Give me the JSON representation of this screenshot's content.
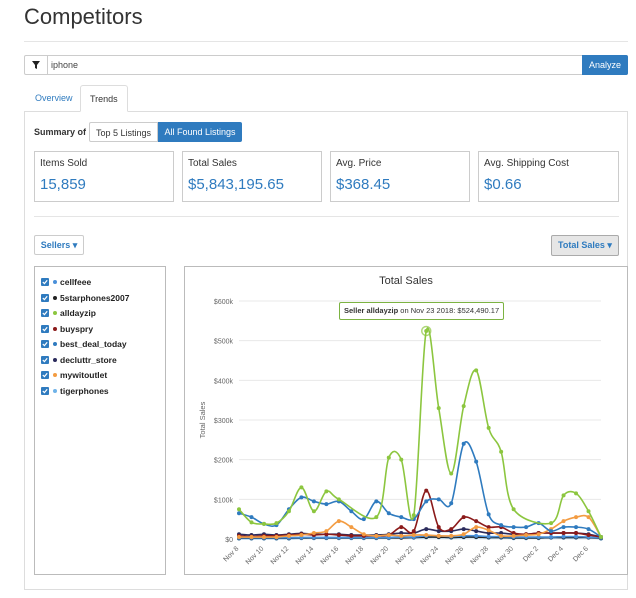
{
  "page": {
    "title": "Competitors"
  },
  "search": {
    "value": "iphone",
    "analyze_label": "Analyze"
  },
  "tabs": [
    {
      "label": "Overview"
    },
    {
      "label": "Trends"
    }
  ],
  "summary": {
    "label": "Summary of",
    "options": [
      "Top 5 Listings",
      "All Found Listings"
    ],
    "selected": "All Found Listings"
  },
  "stats": [
    {
      "label": "Items Sold",
      "value": "15,859"
    },
    {
      "label": "Total Sales",
      "value": "$5,843,195.65"
    },
    {
      "label": "Avg. Price",
      "value": "$368.45"
    },
    {
      "label": "Avg. Shipping Cost",
      "value": "$0.66"
    }
  ],
  "controls": {
    "sellers_label": "Sellers",
    "metric_label": "Total Sales"
  },
  "sellers": [
    {
      "name": "cellfeee",
      "color": "#4a90d9",
      "checked": true
    },
    {
      "name": "5starphones2007",
      "color": "#222222",
      "checked": true
    },
    {
      "name": "alldayzip",
      "color": "#8cc63f",
      "checked": true
    },
    {
      "name": "buyspry",
      "color": "#8b1a1a",
      "checked": true
    },
    {
      "name": "best_deal_today",
      "color": "#2f7bbf",
      "checked": true
    },
    {
      "name": "decluttr_store",
      "color": "#2b2b5c",
      "checked": true
    },
    {
      "name": "mywitoutlet",
      "color": "#f39c42",
      "checked": true
    },
    {
      "name": "tigerphones",
      "color": "#6fb3e8",
      "checked": true
    }
  ],
  "tooltip": {
    "seller": "Seller alldayzip",
    "rest": " on Nov 23 2018: $524,490.17"
  },
  "chart_data": {
    "type": "line",
    "title": "Total Sales",
    "ylabel": "Total Sales",
    "ylim": [
      0,
      600000
    ],
    "yticks": [
      "$0",
      "$100k",
      "$200k",
      "$300k",
      "$400k",
      "$500k",
      "$600k"
    ],
    "x": [
      "Nov 8",
      "Nov 9",
      "Nov 10",
      "Nov 11",
      "Nov 12",
      "Nov 13",
      "Nov 14",
      "Nov 15",
      "Nov 16",
      "Nov 17",
      "Nov 18",
      "Nov 19",
      "Nov 20",
      "Nov 21",
      "Nov 22",
      "Nov 23",
      "Nov 24",
      "Nov 25",
      "Nov 26",
      "Nov 27",
      "Nov 28",
      "Nov 29",
      "Nov 30",
      "Dec 1",
      "Dec 2",
      "Dec 3",
      "Dec 4",
      "Dec 5",
      "Dec 6",
      "Dec 7"
    ],
    "xtick_labels": [
      "Nov 8",
      "Nov 10",
      "Nov 12",
      "Nov 14",
      "Nov 16",
      "Nov 18",
      "Nov 20",
      "Nov 22",
      "Nov 24",
      "Nov 26",
      "Nov 28",
      "Nov 30",
      "Dec 2",
      "Dec 4",
      "Dec 6"
    ],
    "series": [
      {
        "name": "alldayzip",
        "color": "#8cc63f",
        "values": [
          75000,
          42000,
          38000,
          40000,
          70000,
          130000,
          70000,
          120000,
          100000,
          null,
          null,
          55000,
          205000,
          200000,
          60000,
          524490,
          330000,
          165000,
          335000,
          425000,
          280000,
          220000,
          75000,
          null,
          null,
          40000,
          110000,
          115000,
          70000,
          5000
        ]
      },
      {
        "name": "best_deal_today",
        "color": "#2f7bbf",
        "values": [
          65000,
          55000,
          38000,
          35000,
          75000,
          105000,
          95000,
          88000,
          95000,
          70000,
          50000,
          95000,
          65000,
          55000,
          50000,
          95000,
          100000,
          90000,
          240000,
          195000,
          62000,
          35000,
          30000,
          30000,
          40000,
          20000,
          30000,
          30000,
          25000,
          5000
        ]
      },
      {
        "name": "mywitoutlet",
        "color": "#f39c42",
        "values": [
          5000,
          5000,
          5000,
          5000,
          8000,
          10000,
          15000,
          20000,
          45000,
          30000,
          12000,
          8000,
          10000,
          8000,
          10000,
          10000,
          8000,
          8000,
          12000,
          30000,
          22000,
          8000,
          8000,
          10000,
          12000,
          25000,
          45000,
          55000,
          55000,
          5000
        ]
      },
      {
        "name": "buyspry",
        "color": "#8b1a1a",
        "values": [
          8000,
          6000,
          8000,
          8000,
          10000,
          12000,
          10000,
          12000,
          10000,
          8000,
          8000,
          8000,
          10000,
          30000,
          20000,
          122000,
          30000,
          25000,
          55000,
          45000,
          30000,
          30000,
          15000,
          12000,
          15000,
          15000,
          15000,
          15000,
          10000,
          5000
        ]
      },
      {
        "name": "decluttr_store",
        "color": "#2b2b5c",
        "values": [
          12000,
          10000,
          12000,
          10000,
          12000,
          14000,
          12000,
          12000,
          12000,
          10000,
          10000,
          10000,
          12000,
          15000,
          15000,
          25000,
          20000,
          20000,
          25000,
          20000,
          15000,
          15000,
          12000,
          12000,
          15000,
          15000,
          15000,
          15000,
          12000,
          5000
        ]
      },
      {
        "name": "cellfeee",
        "color": "#4a90d9",
        "values": [
          3000,
          3000,
          3000,
          3000,
          3000,
          4000,
          4000,
          4000,
          4000,
          4000,
          4000,
          4000,
          4000,
          5000,
          5000,
          8000,
          8000,
          6000,
          8000,
          8000,
          6000,
          6000,
          5000,
          5000,
          5000,
          5000,
          6000,
          6000,
          5000,
          3000
        ]
      },
      {
        "name": "5starphones2007",
        "color": "#222222",
        "values": [
          2000,
          2000,
          2000,
          2000,
          2000,
          3000,
          3000,
          3000,
          3000,
          3000,
          3000,
          3000,
          3000,
          3000,
          4000,
          5000,
          5000,
          4000,
          5000,
          5000,
          4000,
          4000,
          3000,
          3000,
          3000,
          4000,
          4000,
          4000,
          4000,
          2000
        ]
      },
      {
        "name": "tigerphones",
        "color": "#6fb3e8",
        "values": [
          1000,
          1000,
          1000,
          1000,
          1000,
          2000,
          2000,
          2000,
          2000,
          2000,
          2000,
          2000,
          2000,
          3000,
          3000,
          4000,
          4000,
          3000,
          4000,
          4000,
          3000,
          3000,
          2000,
          2000,
          2000,
          3000,
          3000,
          3000,
          3000,
          1000
        ]
      }
    ]
  }
}
